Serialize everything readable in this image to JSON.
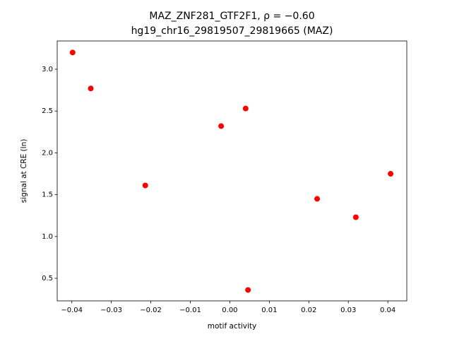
{
  "chart_data": {
    "type": "scatter",
    "title": "MAZ_ZNF281_GTF2F1, ρ = −0.60",
    "subtitle": "hg19_chr16_29819507_29819665 (MAZ)",
    "x_label": "motif activity",
    "y_label": "signal at CRE (ln)",
    "color": "#ff0000",
    "x": [
      -0.0398,
      -0.0352,
      -0.0214,
      -0.0022,
      0.004,
      0.0046,
      0.0221,
      0.0319,
      0.0407
    ],
    "values": [
      3.2,
      2.77,
      1.61,
      2.32,
      2.53,
      0.36,
      1.45,
      1.23,
      1.75
    ],
    "xlim": [
      -0.0437,
      0.0448
    ],
    "ylim": [
      0.23,
      3.338
    ],
    "xticks": [
      {
        "value": -0.04,
        "label": "−0.04"
      },
      {
        "value": -0.03,
        "label": "−0.03"
      },
      {
        "value": -0.02,
        "label": "−0.02"
      },
      {
        "value": -0.01,
        "label": "−0.01"
      },
      {
        "value": 0,
        "label": "0.00"
      },
      0.01,
      0.02,
      0.03,
      0.04
    ],
    "yticks": [
      0.5,
      {
        "value": 1,
        "label": "1.0"
      },
      1.5,
      {
        "value": 2,
        "label": "2.0"
      },
      2.5,
      {
        "value": 3,
        "label": "3.0"
      }
    ]
  }
}
